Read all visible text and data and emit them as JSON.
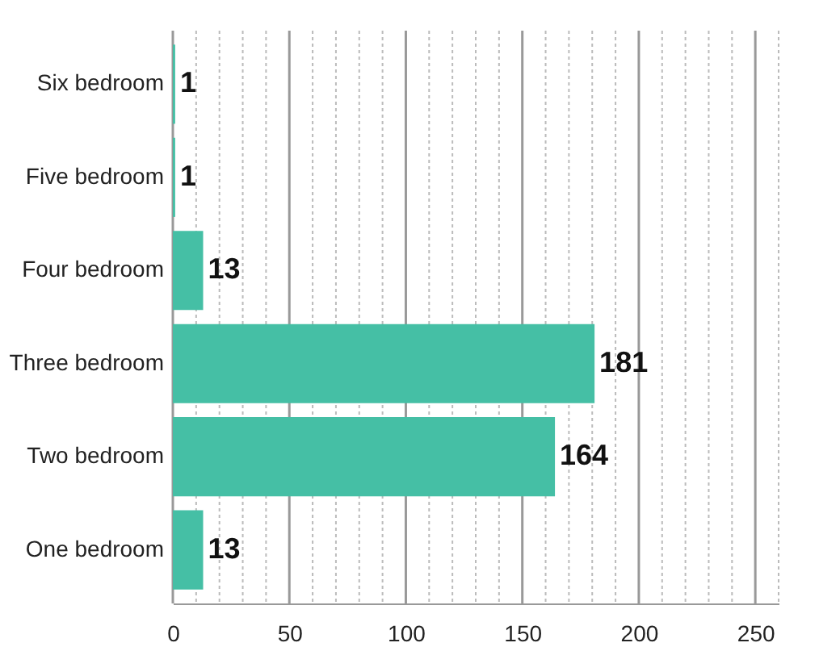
{
  "chart_data": {
    "type": "bar",
    "orientation": "horizontal",
    "categories": [
      "Six bedroom",
      "Five bedroom",
      "Four bedroom",
      "Three bedroom",
      "Two bedroom",
      "One bedroom"
    ],
    "values": [
      1,
      1,
      13,
      181,
      164,
      13
    ],
    "color": "#45bfa5",
    "xlim": [
      0,
      260
    ],
    "xticks": [
      0,
      {
        "value": 10,
        "label": null
      },
      {
        "value": 20,
        "label": null
      },
      {
        "value": 30,
        "label": null
      },
      {
        "value": 40,
        "label": null
      },
      50,
      {
        "value": 60,
        "label": null
      },
      {
        "value": 70,
        "label": null
      },
      {
        "value": 80,
        "label": null
      },
      {
        "value": 90,
        "label": null
      },
      100,
      {
        "value": 110,
        "label": null
      },
      {
        "value": 120,
        "label": null
      },
      {
        "value": 130,
        "label": null
      },
      {
        "value": 140,
        "label": null
      },
      150,
      {
        "value": 160,
        "label": null
      },
      {
        "value": 170,
        "label": null
      },
      {
        "value": 180,
        "label": null
      },
      {
        "value": 190,
        "label": null
      },
      200,
      {
        "value": 210,
        "label": null
      },
      {
        "value": 220,
        "label": null
      },
      {
        "value": 230,
        "label": null
      },
      {
        "value": 240,
        "label": null
      },
      250,
      {
        "value": 260,
        "label": null
      }
    ],
    "grid": "x",
    "data_labels": true
  }
}
